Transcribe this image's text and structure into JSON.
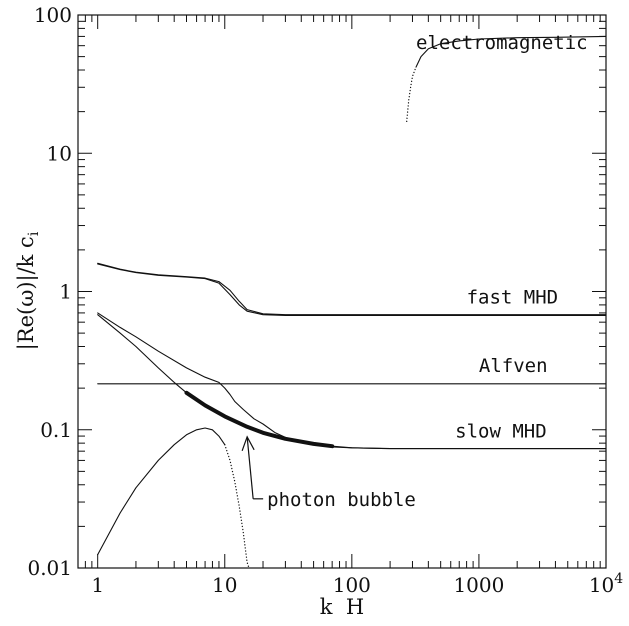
{
  "chart_data": {
    "type": "line",
    "xlabel": "k  H",
    "ylabel": "|Re(ω)|/k c",
    "ylabel_subscript": "i",
    "xscale": "log",
    "yscale": "log",
    "xlim": [
      0.7,
      10000
    ],
    "ylim": [
      0.01,
      100
    ],
    "x_ticks": [
      {
        "value": 1,
        "label": "1"
      },
      {
        "value": 10,
        "label": "10"
      },
      {
        "value": 100,
        "label": "100"
      },
      {
        "value": 1000,
        "label": "1000"
      },
      {
        "value": 10000,
        "label": "10",
        "sup": "4"
      }
    ],
    "y_ticks": [
      {
        "value": 0.01,
        "label": "0.01"
      },
      {
        "value": 0.1,
        "label": "0.1"
      },
      {
        "value": 1,
        "label": "1"
      },
      {
        "value": 10,
        "label": "10"
      },
      {
        "value": 100,
        "label": "100"
      }
    ],
    "grid": false,
    "series": [
      {
        "name": "electromagnetic",
        "style": "dotted",
        "x": [
          270,
          280,
          290,
          300,
          320
        ],
        "y": [
          17,
          24,
          30,
          36,
          42
        ]
      },
      {
        "name": "electromagnetic",
        "style": "solid",
        "x": [
          320,
          350,
          400,
          500,
          700,
          1000,
          2000,
          4000,
          10000
        ],
        "y": [
          42,
          50,
          57,
          62,
          65,
          67,
          68.5,
          69,
          70
        ]
      },
      {
        "style": "solid",
        "x": [
          1,
          1.5,
          2,
          3,
          5,
          7,
          9,
          11,
          13,
          15,
          20,
          30,
          50,
          100,
          1000,
          10000
        ],
        "y": [
          1.6,
          1.45,
          1.38,
          1.32,
          1.28,
          1.25,
          1.18,
          1.02,
          0.85,
          0.74,
          0.69,
          0.68,
          0.68,
          0.68,
          0.68,
          0.68
        ]
      },
      {
        "name": "fast MHD",
        "style": "solid",
        "x": [
          1,
          1.5,
          2,
          3,
          5,
          7,
          9,
          11,
          13,
          15,
          20,
          30,
          50,
          100,
          1000,
          10000
        ],
        "y": [
          1.58,
          1.44,
          1.37,
          1.31,
          1.27,
          1.24,
          1.15,
          0.95,
          0.8,
          0.72,
          0.68,
          0.67,
          0.67,
          0.67,
          0.67,
          0.67
        ]
      },
      {
        "name": "Alfven",
        "style": "solid",
        "x": [
          1,
          10000
        ],
        "y": [
          0.215,
          0.215
        ]
      },
      {
        "style": "solid",
        "x": [
          1,
          1.5,
          2,
          3,
          5,
          7,
          9,
          10,
          11,
          12,
          14,
          17,
          20,
          25,
          30,
          40,
          50,
          70,
          100,
          200,
          1000,
          10000
        ],
        "y": [
          0.7,
          0.55,
          0.47,
          0.37,
          0.28,
          0.24,
          0.22,
          0.2,
          0.18,
          0.16,
          0.14,
          0.12,
          0.11,
          0.095,
          0.088,
          0.081,
          0.078,
          0.075,
          0.074,
          0.073,
          0.073,
          0.073
        ]
      },
      {
        "name": "slow MHD",
        "style": "solid",
        "x": [
          1,
          1.5,
          2,
          3,
          4,
          5,
          7,
          10,
          15,
          20,
          30,
          50,
          70,
          100,
          200,
          1000,
          10000
        ],
        "y": [
          0.68,
          0.5,
          0.4,
          0.28,
          0.22,
          0.185,
          0.15,
          0.125,
          0.105,
          0.095,
          0.086,
          0.079,
          0.076,
          0.074,
          0.073,
          0.073,
          0.073
        ]
      },
      {
        "name": "photon bubble",
        "style": "thick",
        "x": [
          5,
          7,
          10,
          15,
          20,
          30,
          50,
          70
        ],
        "y": [
          0.185,
          0.15,
          0.125,
          0.105,
          0.095,
          0.086,
          0.079,
          0.076
        ]
      },
      {
        "style": "solid",
        "x": [
          1,
          1.5,
          2,
          3,
          4,
          5,
          6,
          7,
          8,
          9,
          10
        ],
        "y": [
          0.0125,
          0.025,
          0.038,
          0.06,
          0.078,
          0.092,
          0.1,
          0.103,
          0.1,
          0.09,
          0.078
        ]
      },
      {
        "style": "dotted",
        "x": [
          10,
          11,
          12,
          13,
          14,
          15,
          15.5
        ],
        "y": [
          0.078,
          0.06,
          0.042,
          0.028,
          0.018,
          0.011,
          0.01
        ]
      }
    ],
    "annotations": [
      {
        "text": "electromagnetic",
        "kind": "curve-label",
        "x": 320,
        "y": 57
      },
      {
        "text": "fast MHD",
        "kind": "curve-label",
        "x": 800,
        "y": 0.82
      },
      {
        "text": "Alfven",
        "kind": "curve-label",
        "x": 1000,
        "y": 0.262
      },
      {
        "text": "slow MHD",
        "kind": "curve-label",
        "x": 650,
        "y": 0.088
      },
      {
        "text": "photon bubble",
        "kind": "arrow-label",
        "x": 15,
        "y": 0.105
      }
    ]
  }
}
